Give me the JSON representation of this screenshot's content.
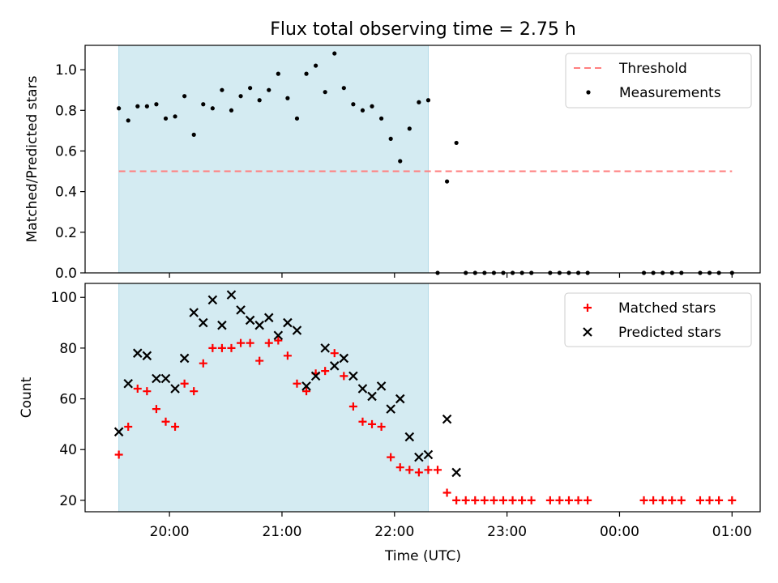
{
  "chart_data": {
    "title": "Flux total observing time = 2.75 h",
    "xlabel": "Time (UTC)",
    "x_ticks": [
      "20:00",
      "21:00",
      "22:00",
      "23:00",
      "00:00",
      "01:00"
    ],
    "shaded_interval": [
      "19:33",
      "22:18"
    ],
    "x_range": [
      "19:15",
      "01:15"
    ],
    "colors": {
      "shade": "#add8e6",
      "threshold": "#ff7f7f",
      "matched": "#ff0000",
      "predicted": "#000000",
      "measure": "#000000"
    },
    "panels": [
      {
        "type": "scatter",
        "ylabel": "Matched/Predicted stars",
        "ylim": [
          0,
          1.12
        ],
        "y_ticks": [
          "0.0",
          "0.2",
          "0.4",
          "0.6",
          "0.8",
          "1.0"
        ],
        "legend_position": "upper right",
        "threshold": {
          "name": "Threshold",
          "y": 0.5,
          "x_range": [
            "19:33",
            "01:00"
          ]
        },
        "series": [
          {
            "name": "Measurements",
            "points": [
              [
                "19:33",
                0.81
              ],
              [
                "19:38",
                0.75
              ],
              [
                "19:43",
                0.82
              ],
              [
                "19:48",
                0.82
              ],
              [
                "19:53",
                0.83
              ],
              [
                "19:58",
                0.76
              ],
              [
                "20:03",
                0.77
              ],
              [
                "20:08",
                0.87
              ],
              [
                "20:13",
                0.68
              ],
              [
                "20:18",
                0.83
              ],
              [
                "20:23",
                0.81
              ],
              [
                "20:28",
                0.9
              ],
              [
                "20:33",
                0.8
              ],
              [
                "20:38",
                0.87
              ],
              [
                "20:43",
                0.91
              ],
              [
                "20:48",
                0.85
              ],
              [
                "20:53",
                0.9
              ],
              [
                "20:58",
                0.98
              ],
              [
                "21:03",
                0.86
              ],
              [
                "21:08",
                0.76
              ],
              [
                "21:13",
                0.98
              ],
              [
                "21:18",
                1.02
              ],
              [
                "21:23",
                0.89
              ],
              [
                "21:28",
                1.08
              ],
              [
                "21:33",
                0.91
              ],
              [
                "21:38",
                0.83
              ],
              [
                "21:43",
                0.8
              ],
              [
                "21:48",
                0.82
              ],
              [
                "21:53",
                0.76
              ],
              [
                "21:58",
                0.66
              ],
              [
                "22:03",
                0.55
              ],
              [
                "22:08",
                0.71
              ],
              [
                "22:13",
                0.84
              ],
              [
                "22:18",
                0.85
              ],
              [
                "22:23",
                0.0
              ],
              [
                "22:28",
                0.45
              ],
              [
                "22:33",
                0.64
              ],
              [
                "22:38",
                0.0
              ],
              [
                "22:43",
                0.0
              ],
              [
                "22:48",
                0.0
              ],
              [
                "22:53",
                0.0
              ],
              [
                "22:58",
                0.0
              ],
              [
                "23:03",
                0.0
              ],
              [
                "23:08",
                0.0
              ],
              [
                "23:13",
                0.0
              ],
              [
                "23:23",
                0.0
              ],
              [
                "23:28",
                0.0
              ],
              [
                "23:33",
                0.0
              ],
              [
                "23:38",
                0.0
              ],
              [
                "23:43",
                0.0
              ],
              [
                "00:13",
                0.0
              ],
              [
                "00:18",
                0.0
              ],
              [
                "00:23",
                0.0
              ],
              [
                "00:28",
                0.0
              ],
              [
                "00:33",
                0.0
              ],
              [
                "00:43",
                0.0
              ],
              [
                "00:48",
                0.0
              ],
              [
                "00:53",
                0.0
              ],
              [
                "01:00",
                0.0
              ]
            ]
          }
        ]
      },
      {
        "type": "scatter",
        "ylabel": "Count",
        "ylim": [
          15.5,
          105.5
        ],
        "y_ticks": [
          "20",
          "40",
          "60",
          "80",
          "100"
        ],
        "legend_position": "upper right",
        "series": [
          {
            "name": "Matched stars",
            "marker": "plus",
            "points": [
              [
                "19:33",
                38
              ],
              [
                "19:38",
                49
              ],
              [
                "19:43",
                64
              ],
              [
                "19:48",
                63
              ],
              [
                "19:53",
                56
              ],
              [
                "19:58",
                51
              ],
              [
                "20:03",
                49
              ],
              [
                "20:08",
                66
              ],
              [
                "20:13",
                63
              ],
              [
                "20:18",
                74
              ],
              [
                "20:23",
                80
              ],
              [
                "20:28",
                80
              ],
              [
                "20:33",
                80
              ],
              [
                "20:38",
                82
              ],
              [
                "20:43",
                82
              ],
              [
                "20:48",
                75
              ],
              [
                "20:53",
                82
              ],
              [
                "20:58",
                83
              ],
              [
                "21:03",
                77
              ],
              [
                "21:08",
                66
              ],
              [
                "21:13",
                63
              ],
              [
                "21:18",
                70
              ],
              [
                "21:23",
                71
              ],
              [
                "21:28",
                78
              ],
              [
                "21:33",
                69
              ],
              [
                "21:38",
                57
              ],
              [
                "21:43",
                51
              ],
              [
                "21:48",
                50
              ],
              [
                "21:53",
                49
              ],
              [
                "21:58",
                37
              ],
              [
                "22:03",
                33
              ],
              [
                "22:08",
                32
              ],
              [
                "22:13",
                31
              ],
              [
                "22:18",
                32
              ],
              [
                "22:23",
                32
              ],
              [
                "22:28",
                23
              ],
              [
                "22:33",
                20
              ],
              [
                "22:38",
                20
              ],
              [
                "22:43",
                20
              ],
              [
                "22:48",
                20
              ],
              [
                "22:53",
                20
              ],
              [
                "22:58",
                20
              ],
              [
                "23:03",
                20
              ],
              [
                "23:08",
                20
              ],
              [
                "23:13",
                20
              ],
              [
                "23:23",
                20
              ],
              [
                "23:28",
                20
              ],
              [
                "23:33",
                20
              ],
              [
                "23:38",
                20
              ],
              [
                "23:43",
                20
              ],
              [
                "00:13",
                20
              ],
              [
                "00:18",
                20
              ],
              [
                "00:23",
                20
              ],
              [
                "00:28",
                20
              ],
              [
                "00:33",
                20
              ],
              [
                "00:43",
                20
              ],
              [
                "00:48",
                20
              ],
              [
                "00:53",
                20
              ],
              [
                "01:00",
                20
              ]
            ]
          },
          {
            "name": "Predicted stars",
            "marker": "x",
            "points": [
              [
                "19:33",
                47
              ],
              [
                "19:38",
                66
              ],
              [
                "19:43",
                78
              ],
              [
                "19:48",
                77
              ],
              [
                "19:53",
                68
              ],
              [
                "19:58",
                68
              ],
              [
                "20:03",
                64
              ],
              [
                "20:08",
                76
              ],
              [
                "20:13",
                94
              ],
              [
                "20:18",
                90
              ],
              [
                "20:23",
                99
              ],
              [
                "20:28",
                89
              ],
              [
                "20:33",
                101
              ],
              [
                "20:38",
                95
              ],
              [
                "20:43",
                91
              ],
              [
                "20:48",
                89
              ],
              [
                "20:53",
                92
              ],
              [
                "20:58",
                85
              ],
              [
                "21:03",
                90
              ],
              [
                "21:08",
                87
              ],
              [
                "21:13",
                65
              ],
              [
                "21:18",
                69
              ],
              [
                "21:23",
                80
              ],
              [
                "21:28",
                73
              ],
              [
                "21:33",
                76
              ],
              [
                "21:38",
                69
              ],
              [
                "21:43",
                64
              ],
              [
                "21:48",
                61
              ],
              [
                "21:53",
                65
              ],
              [
                "21:58",
                56
              ],
              [
                "22:03",
                60
              ],
              [
                "22:08",
                45
              ],
              [
                "22:13",
                37
              ],
              [
                "22:18",
                38
              ],
              [
                "22:28",
                52
              ],
              [
                "22:33",
                31
              ]
            ]
          }
        ]
      }
    ]
  }
}
